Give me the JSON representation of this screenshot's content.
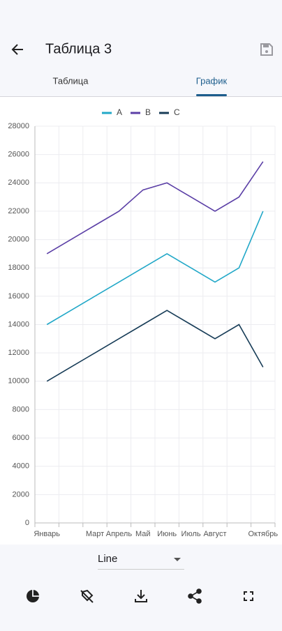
{
  "header": {
    "title": "Таблица 3"
  },
  "tabs": [
    "Таблица",
    "График"
  ],
  "chart_data": {
    "type": "line",
    "categories": [
      "Январь",
      null,
      "Март",
      "Апрель",
      "Май",
      "Июнь",
      "Июль",
      "Август",
      null,
      "Октябрь"
    ],
    "series": [
      {
        "name": "A",
        "color": "#22a8c8",
        "values": [
          14000,
          15000,
          16000,
          17000,
          18000,
          19000,
          18000,
          17000,
          18000,
          22000
        ]
      },
      {
        "name": "B",
        "color": "#5b3fa6",
        "values": [
          19000,
          20000,
          21000,
          22000,
          23500,
          24000,
          23000,
          22000,
          23000,
          25500
        ]
      },
      {
        "name": "C",
        "color": "#173c57",
        "values": [
          10000,
          11000,
          12000,
          13000,
          14000,
          15000,
          14000,
          13000,
          14000,
          11000
        ]
      }
    ],
    "ylim": [
      0,
      28000
    ],
    "yticks": [
      0,
      2000,
      4000,
      6000,
      8000,
      10000,
      12000,
      14000,
      16000,
      18000,
      20000,
      22000,
      24000,
      26000,
      28000
    ],
    "grid": true,
    "legend": "top"
  },
  "chart_kind": "Line"
}
